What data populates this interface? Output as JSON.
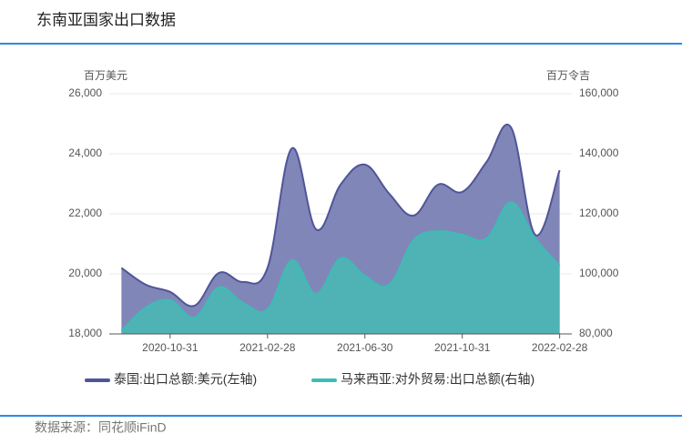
{
  "title": "东南亚国家出口数据",
  "source": "数据来源：同花顺iFinD",
  "chart_data": {
    "type": "area",
    "y_label": "百万美元",
    "y2_label": "百万令吉",
    "categories": [
      null,
      null,
      "2020-10-31",
      null,
      null,
      null,
      "2021-02-28",
      null,
      null,
      null,
      "2021-06-30",
      null,
      null,
      null,
      "2021-10-31",
      null,
      null,
      null,
      "2022-02-28"
    ],
    "ylim": [
      18000,
      26000
    ],
    "yticks": [
      {
        "value": 18000,
        "label": "18,000"
      },
      {
        "value": 20000,
        "label": "20,000"
      },
      {
        "value": 22000,
        "label": "22,000"
      },
      {
        "value": 24000,
        "label": "24,000"
      },
      {
        "value": 26000,
        "label": "26,000"
      }
    ],
    "y2lim": [
      80000,
      160000
    ],
    "y2ticks": [
      {
        "value": 80000,
        "label": "80,000"
      },
      {
        "value": 100000,
        "label": "100,000"
      },
      {
        "value": 120000,
        "label": "120,000"
      },
      {
        "value": 140000,
        "label": "140,000"
      },
      {
        "value": 160000,
        "label": "160,000"
      }
    ],
    "grid": true,
    "legend": "bottom",
    "series": [
      {
        "name": "泰国:出口总额:美元(左轴)",
        "color": "#4f5597",
        "fill": "#8186b8",
        "values": [
          20200,
          19640,
          19400,
          18940,
          20030,
          19730,
          20200,
          24180,
          21480,
          22970,
          23640,
          22670,
          21940,
          22970,
          22730,
          23730,
          24880,
          21300,
          23450
        ]
      },
      {
        "name": "马来西亚:对外贸易:出口总额(右轴)",
        "color": "#3cbcb5",
        "fill": "#4fb3b5",
        "axis": "y2",
        "values": [
          81000,
          88800,
          91200,
          85500,
          95500,
          90300,
          88200,
          104500,
          93300,
          105200,
          99400,
          96400,
          111200,
          114200,
          113000,
          111800,
          123900,
          111800,
          102700
        ]
      }
    ]
  }
}
